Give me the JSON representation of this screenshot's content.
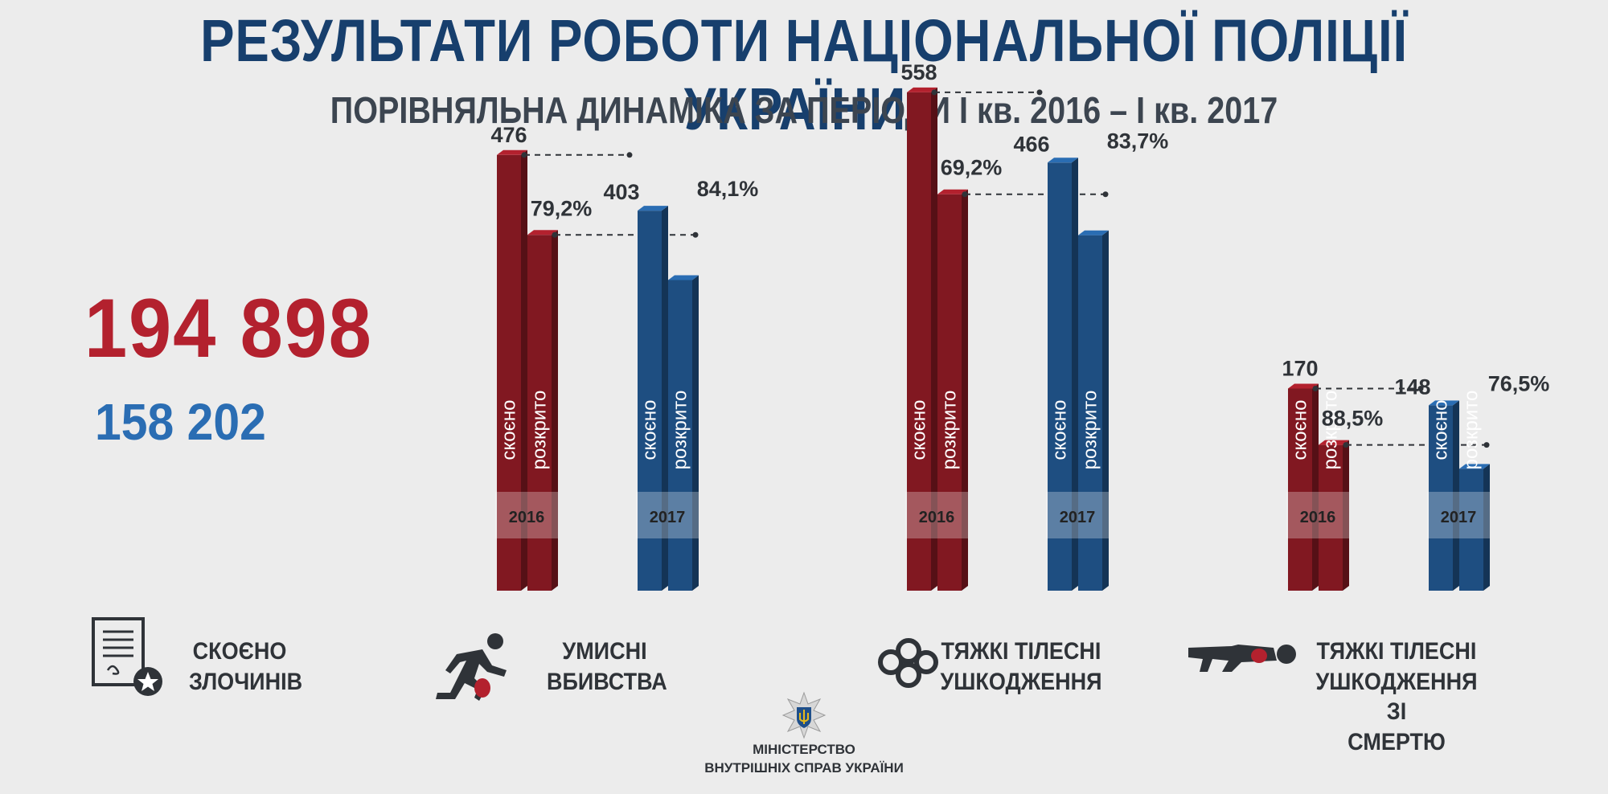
{
  "header": {
    "title": "РЕЗУЛЬТАТИ РОБОТИ НАЦІОНАЛЬНОЇ ПОЛІЦІЇ УКРАЇНИ:",
    "subtitle": "ПОРІВНЯЛЬНА ДИНАМІКА ЗА ПЕРІОДИ І кв. 2016 – І кв. 2017"
  },
  "totals": {
    "committed": "194 898",
    "solved": "158 202"
  },
  "colors": {
    "red": "#b3212e",
    "blue": "#2a6db3",
    "title": "#173f6d"
  },
  "bar_labels": {
    "committed": "скоєно",
    "solved": "розкрито"
  },
  "chart_data": [
    {
      "type": "bar",
      "category": "УМИСНІ ВБИВСТВА",
      "icon": "runner-icon",
      "series": [
        {
          "name": "2016",
          "committed": 476,
          "solved_pct": "79,2%"
        },
        {
          "name": "2017",
          "committed": 403,
          "solved_pct": "84,1%"
        }
      ]
    },
    {
      "type": "bar",
      "category": "ТЯЖКІ ТІЛЕСНІ УШКОДЖЕННЯ",
      "icon": "brass-knuckles-icon",
      "series": [
        {
          "name": "2016",
          "committed": 558,
          "solved_pct": "69,2%"
        },
        {
          "name": "2017",
          "committed": 466,
          "solved_pct": "83,7%"
        }
      ]
    },
    {
      "type": "bar",
      "category": "ТЯЖКІ ТІЛЕСНІ УШКОДЖЕННЯ ЗІ СМЕРТЮ",
      "icon": "lying-person-icon",
      "series": [
        {
          "name": "2016",
          "committed": 170,
          "solved_pct": "88,5%"
        },
        {
          "name": "2017",
          "committed": 148,
          "solved_pct": "76,5%"
        }
      ]
    }
  ],
  "legend": {
    "crimes_line1": "СКОЄНО",
    "crimes_line2": "ЗЛОЧИНІВ",
    "icon": "certificate-icon",
    "murders_line1": "УМИСНІ",
    "murders_line2": "ВБИВСТВА",
    "grievous_line1": "ТЯЖКІ ТІЛЕСНІ",
    "grievous_line2": "УШКОДЖЕННЯ",
    "deadly_line1": "ТЯЖКІ ТІЛЕСНІ",
    "deadly_line2": "УШКОДЖЕННЯ ЗІ",
    "deadly_line3": "СМЕРТЮ"
  },
  "footer": {
    "org_line1": "МІНІСТЕРСТВО",
    "org_line2": "ВНУТРІШНІХ СПРАВ УКРАЇНИ",
    "logo": "police-emblem-icon"
  }
}
